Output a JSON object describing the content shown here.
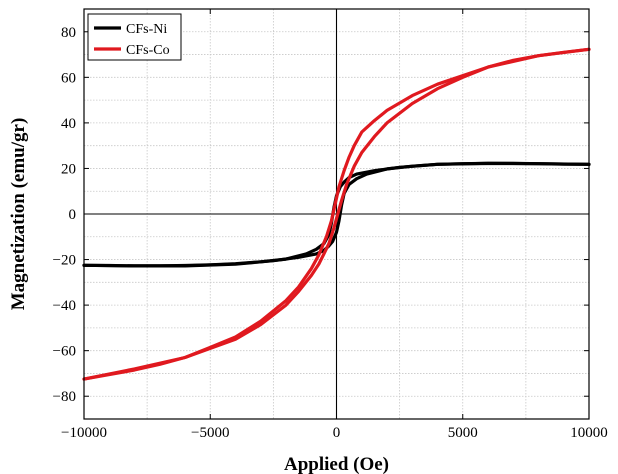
{
  "chart_data": {
    "type": "line",
    "xlabel": "Applied (Oe)",
    "ylabel": "Magnetization (emu/gr)",
    "xlim": [
      -10000,
      10000
    ],
    "ylim": [
      -90,
      90
    ],
    "x_ticks": [
      -10000,
      -5000,
      0,
      5000,
      10000
    ],
    "x_tick_labels": [
      "−10000",
      "−5000",
      "0",
      "5000",
      "10000"
    ],
    "y_ticks": [
      -80,
      -60,
      -40,
      -20,
      0,
      20,
      40,
      60,
      80
    ],
    "y_tick_labels": [
      "−80",
      "−60",
      "−40",
      "−20",
      "0",
      "20",
      "40",
      "60",
      "80"
    ],
    "grid": true,
    "legend_position": "top-left",
    "series": [
      {
        "name": "CFs-Ni",
        "color": "#000000",
        "branches": [
          {
            "x": [
              -10000,
              -8000,
              -6000,
              -4000,
              -2500,
              -1500,
              -800,
              -500,
              -300,
              -150,
              0,
              100,
              200,
              300,
              500,
              800,
              1200,
              2000,
              3000,
              4000,
              5000,
              6000,
              7000,
              8000,
              9000,
              10000
            ],
            "y": [
              -22.5,
              -22.8,
              -22.8,
              -22,
              -20.5,
              -19,
              -17.5,
              -16,
              -14,
              -12,
              -8,
              -3,
              4,
              9,
              13,
              15.5,
              17.5,
              19.8,
              21,
              21.8,
              22.1,
              22.2,
              22.2,
              22.1,
              21.9,
              21.8
            ]
          },
          {
            "x": [
              10000,
              8000,
              6000,
              4000,
              2500,
              1500,
              800,
              500,
              300,
              150,
              0,
              -100,
              -200,
              -300,
              -500,
              -800,
              -1200,
              -2000,
              -3000,
              -4000,
              -5000,
              -6000,
              -7000,
              -8000,
              -9000,
              -10000
            ],
            "y": [
              21.8,
              22.1,
              22.2,
              21.8,
              20.5,
              19,
              17.5,
              16,
              14,
              12,
              8,
              3,
              -4,
              -9,
              -13,
              -15.5,
              -17.5,
              -19.8,
              -21,
              -21.8,
              -22.3,
              -22.6,
              -22.8,
              -22.8,
              -22.6,
              -22.5
            ]
          }
        ]
      },
      {
        "name": "CFs-Co",
        "color": "#e0191f",
        "branches": [
          {
            "x": [
              -10000,
              -8000,
              -6000,
              -4000,
              -3000,
              -2000,
              -1500,
              -1000,
              -700,
              -500,
              -300,
              -100,
              0,
              200,
              400,
              700,
              1000,
              1500,
              2000,
              3000,
              4000,
              5000,
              6000,
              7000,
              8000,
              9000,
              10000
            ],
            "y": [
              -72.5,
              -68,
              -63,
              -55,
              -48.5,
              -40,
              -34,
              -27,
              -22,
              -17.5,
              -13,
              -6,
              -2,
              6,
              13,
              21,
              27,
              34,
              40,
              48.5,
              55,
              60,
              64.5,
              67.5,
              69.5,
              71,
              72.3
            ]
          },
          {
            "x": [
              10000,
              8000,
              6000,
              4000,
              3000,
              2000,
              1500,
              1000,
              700,
              500,
              300,
              100,
              0,
              -200,
              -400,
              -700,
              -1000,
              -1500,
              -2000,
              -3000,
              -4000,
              -5000,
              -6000,
              -7000,
              -8000,
              -9000,
              -10000
            ],
            "y": [
              72.3,
              69.5,
              64.5,
              57,
              52,
              45.5,
              41,
              36,
              30,
              25,
              19,
              12,
              7,
              -3,
              -10,
              -18,
              -24,
              -32,
              -38,
              -47,
              -54,
              -58.5,
              -63,
              -66,
              -68.5,
              -70.5,
              -72.5
            ]
          }
        ]
      }
    ]
  }
}
